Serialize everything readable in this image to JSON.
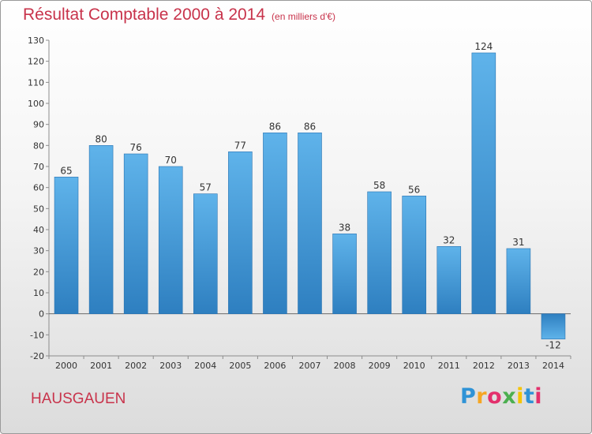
{
  "chart_data": {
    "type": "bar",
    "title": "Résultat Comptable 2000 à 2014",
    "subtitle": "(en milliers d'€)",
    "categories": [
      "2000",
      "2001",
      "2002",
      "2003",
      "2004",
      "2005",
      "2006",
      "2007",
      "2008",
      "2009",
      "2010",
      "2011",
      "2012",
      "2013",
      "2014"
    ],
    "values": [
      65,
      80,
      76,
      70,
      57,
      77,
      86,
      86,
      38,
      58,
      56,
      32,
      124,
      31,
      -12
    ],
    "value_labels": [
      "65",
      "80",
      "76",
      "70",
      "57",
      "77",
      "86",
      "86",
      "38",
      "58",
      "56",
      "32",
      "124",
      "31",
      "-12"
    ],
    "yticks": [
      -20,
      -10,
      0,
      10,
      20,
      30,
      40,
      50,
      60,
      70,
      80,
      90,
      100,
      110,
      120,
      130
    ],
    "ylim": [
      -20,
      130
    ],
    "xlabel": "",
    "ylabel": "",
    "grid": false,
    "legend": "none"
  },
  "commune": "HAUSGAUEN",
  "logo": {
    "letters": [
      "P",
      "r",
      "o",
      "x",
      "i",
      "t",
      "i"
    ],
    "colors": [
      "#2f93d6",
      "#f5a623",
      "#e3306c",
      "#4caf50",
      "#f5c400",
      "#2f93d6",
      "#e3306c"
    ]
  },
  "colors": {
    "accent": "#c8334b",
    "bar_top": "#5fb3ea",
    "bar_bottom": "#2e7fc0"
  }
}
